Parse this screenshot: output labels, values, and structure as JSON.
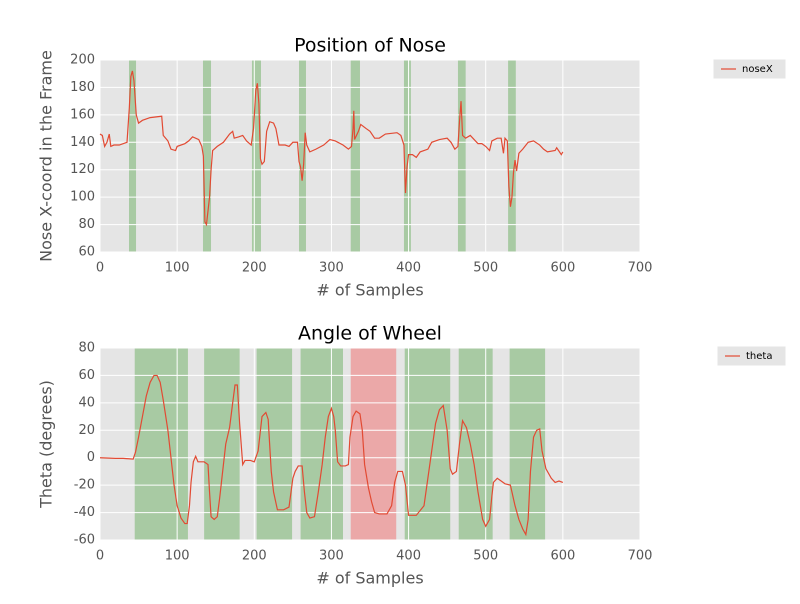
{
  "chart_data": [
    {
      "type": "line",
      "title": "Position of Nose",
      "x_label": "# of Samples",
      "y_label": "Nose X-coord in the Frame",
      "xlim": [
        0,
        700
      ],
      "xticks": [
        0,
        100,
        200,
        300,
        400,
        500,
        600,
        700
      ],
      "ylim": [
        60,
        200
      ],
      "yticks": [
        60,
        80,
        100,
        120,
        140,
        160,
        180,
        200
      ],
      "grid": true,
      "legend": "outside-right",
      "spans": [
        {
          "start": 37.6,
          "end": 46.7,
          "color": "#8fbf88"
        },
        {
          "start": 133.5,
          "end": 143.9,
          "color": "#8fbf88"
        },
        {
          "start": 197,
          "end": 208.7,
          "color": "#8fbf88"
        },
        {
          "start": 258,
          "end": 267,
          "color": "#8fbf88"
        },
        {
          "start": 325,
          "end": 337,
          "color": "#8fbf88"
        },
        {
          "start": 394,
          "end": 403,
          "color": "#8fbf88"
        },
        {
          "start": 464,
          "end": 474,
          "color": "#8fbf88"
        },
        {
          "start": 529,
          "end": 539,
          "color": "#8fbf88"
        }
      ],
      "x": [
        0,
        3,
        6,
        9,
        12,
        14,
        18,
        25,
        35,
        38,
        40,
        42,
        44,
        47,
        50,
        55,
        65,
        80,
        82,
        88,
        92,
        98,
        100,
        110,
        115,
        120,
        128,
        132,
        134,
        136,
        138,
        142,
        144,
        146,
        152,
        160,
        168,
        172,
        174,
        180,
        185,
        190,
        196,
        199,
        202,
        204,
        206,
        208,
        210,
        213,
        216,
        220,
        225,
        228,
        232,
        240,
        245,
        250,
        256,
        258,
        260,
        262,
        264,
        266,
        268,
        272,
        280,
        290,
        298,
        305,
        315,
        322,
        326,
        328,
        329,
        330,
        335,
        338,
        345,
        350,
        356,
        362,
        370,
        385,
        390,
        394,
        396,
        398,
        400,
        405,
        410,
        415,
        425,
        430,
        440,
        450,
        455,
        460,
        464,
        466,
        468,
        470,
        474,
        480,
        490,
        495,
        500,
        505,
        508,
        515,
        520,
        523,
        525,
        528,
        530,
        532,
        534,
        536,
        538,
        540,
        543,
        548,
        555,
        562,
        570,
        575,
        580,
        590,
        592,
        598,
        600
      ],
      "series": [
        {
          "name": "noseX",
          "color": "#e24a33",
          "values": [
            146,
            145,
            137,
            140,
            146,
            137,
            138,
            138,
            140,
            165,
            188,
            192,
            185,
            160,
            154,
            156,
            158,
            159,
            145,
            141,
            135,
            134,
            137,
            139,
            141,
            144,
            142,
            137,
            130,
            82,
            80,
            100,
            120,
            134,
            137,
            140,
            146,
            148,
            143,
            144,
            145,
            141,
            138,
            150,
            178,
            183,
            168,
            128,
            124,
            126,
            148,
            155,
            154,
            150,
            138,
            138,
            137,
            140,
            140,
            126,
            122,
            112,
            124,
            147,
            138,
            133,
            135,
            138,
            142,
            141,
            138,
            135,
            137,
            150,
            163,
            142,
            148,
            153,
            150,
            148,
            143,
            143,
            146,
            147,
            145,
            138,
            103,
            122,
            131,
            131,
            129,
            133,
            135,
            140,
            142,
            143,
            140,
            135,
            137,
            155,
            170,
            145,
            143,
            145,
            139,
            139,
            137,
            134,
            141,
            143,
            143,
            132,
            143,
            141,
            108,
            93,
            100,
            118,
            127,
            119,
            132,
            135,
            140,
            141,
            138,
            135,
            133,
            134,
            136,
            131,
            133
          ]
        }
      ]
    },
    {
      "type": "line",
      "title": "Angle of Wheel",
      "x_label": "# of Samples",
      "y_label": "Theta (degrees)",
      "xlim": [
        0,
        700
      ],
      "xticks": [
        0,
        100,
        200,
        300,
        400,
        500,
        600,
        700
      ],
      "ylim": [
        -60,
        80
      ],
      "yticks": [
        -60,
        -40,
        -20,
        0,
        20,
        40,
        60,
        80
      ],
      "grid": true,
      "legend": "outside-right",
      "spans": [
        {
          "start": 45,
          "end": 114,
          "color": "#8fbf88"
        },
        {
          "start": 135,
          "end": 181,
          "color": "#8fbf88"
        },
        {
          "start": 203,
          "end": 249,
          "color": "#8fbf88"
        },
        {
          "start": 260,
          "end": 315,
          "color": "#8fbf88"
        },
        {
          "start": 325,
          "end": 384,
          "color": "#ee8e8e"
        },
        {
          "start": 395,
          "end": 454,
          "color": "#8fbf88"
        },
        {
          "start": 465,
          "end": 509,
          "color": "#8fbf88"
        },
        {
          "start": 531,
          "end": 577,
          "color": "#8fbf88"
        }
      ],
      "x": [
        0,
        20,
        30,
        43,
        46,
        50,
        55,
        60,
        65,
        70,
        74,
        78,
        82,
        88,
        92,
        96,
        100,
        105,
        110,
        113,
        116,
        118,
        121,
        124,
        127,
        135,
        140,
        142,
        144,
        148,
        152,
        155,
        160,
        163,
        168,
        172,
        175,
        178,
        181,
        185,
        188,
        195,
        200,
        205,
        210,
        215,
        218,
        222,
        225,
        230,
        238,
        245,
        250,
        253,
        257,
        262,
        265,
        268,
        272,
        278,
        283,
        288,
        292,
        296,
        300,
        303,
        305,
        308,
        312,
        318,
        322,
        324,
        328,
        332,
        337,
        340,
        343,
        348,
        352,
        356,
        362,
        372,
        378,
        382,
        386,
        392,
        396,
        400,
        410,
        420,
        425,
        430,
        435,
        440,
        445,
        450,
        454,
        457,
        462,
        466,
        470,
        475,
        480,
        485,
        490,
        496,
        500,
        505,
        508,
        510,
        515,
        520,
        525,
        532,
        538,
        543,
        548,
        552,
        555,
        558,
        562,
        566,
        570,
        573,
        578,
        585,
        590,
        595,
        600
      ],
      "series": [
        {
          "name": "theta",
          "color": "#e24a33",
          "values": [
            0,
            -0.5,
            -0.5,
            -1,
            4,
            15,
            30,
            45,
            55,
            60,
            60,
            55,
            42,
            20,
            0,
            -20,
            -35,
            -44,
            -48,
            -48,
            -35,
            -18,
            -3,
            1,
            -3,
            -3,
            -5,
            -25,
            -43,
            -45,
            -43,
            -30,
            -5,
            10,
            22,
            40,
            53,
            53,
            25,
            -5,
            -2,
            -2,
            -3,
            5,
            30,
            33,
            28,
            -10,
            -25,
            -38,
            -38,
            -36,
            -15,
            -10,
            -6,
            -6,
            -25,
            -40,
            -44,
            -43,
            -25,
            -5,
            15,
            30,
            36,
            30,
            20,
            -3,
            -6,
            -6,
            -5,
            15,
            30,
            34,
            32,
            20,
            -5,
            -22,
            -32,
            -40,
            -41,
            -41,
            -35,
            -18,
            -10,
            -10,
            -20,
            -42,
            -42,
            -35,
            -15,
            5,
            25,
            35,
            38,
            20,
            -8,
            -12,
            -10,
            10,
            27,
            22,
            10,
            -5,
            -25,
            -45,
            -50,
            -45,
            -28,
            -18,
            -15,
            -17,
            -19,
            -20,
            -35,
            -45,
            -52,
            -56,
            -45,
            -10,
            15,
            20,
            21,
            5,
            -8,
            -15,
            -18,
            -17,
            -18
          ]
        }
      ]
    }
  ]
}
